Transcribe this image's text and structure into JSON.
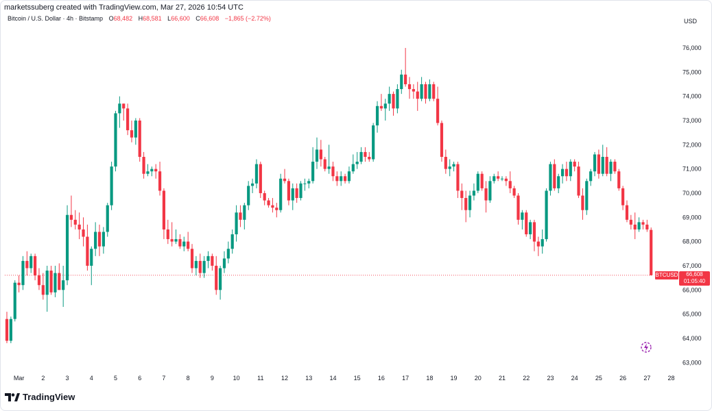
{
  "header": {
    "credit": "marketssuberg created with TradingView.com, Mar 27, 2026 10:54 UTC",
    "symbol_line": "Bitcoin / U.S. Dollar · 4h · Bitstamp",
    "open_label": "O",
    "open_value": "68,482",
    "high_label": "H",
    "high_value": "68,581",
    "low_label": "L",
    "low_value": "66,600",
    "close_label": "C",
    "close_value": "66,608",
    "change": "−1,865 (−2.72%)"
  },
  "axis": {
    "currency": "USD"
  },
  "price_label": {
    "ticker": "BTCUSD",
    "price": "66,608",
    "countdown": "01:05:40"
  },
  "brand": {
    "name": "TradingView"
  },
  "colors": {
    "up": "#089981",
    "down": "#f23645",
    "grid_text": "#131722",
    "price_line": "#f23645"
  },
  "icons": [
    "tradingview-logo-icon",
    "alert-icon"
  ],
  "chart_data": {
    "type": "candlestick",
    "title": "Bitcoin / U.S. Dollar · 4h · Bitstamp",
    "timeframe": "4h",
    "ylim": [
      62500,
      77000
    ],
    "y_ticks": [
      63000,
      64000,
      65000,
      66000,
      67000,
      68000,
      69000,
      70000,
      71000,
      72000,
      73000,
      74000,
      75000,
      76000
    ],
    "x_ticks": [
      {
        "label": "Mar",
        "index": 3
      },
      {
        "label": "2",
        "index": 9
      },
      {
        "label": "3",
        "index": 15
      },
      {
        "label": "4",
        "index": 21
      },
      {
        "label": "5",
        "index": 27
      },
      {
        "label": "6",
        "index": 33
      },
      {
        "label": "7",
        "index": 39
      },
      {
        "label": "8",
        "index": 45
      },
      {
        "label": "9",
        "index": 51
      },
      {
        "label": "10",
        "index": 57
      },
      {
        "label": "11",
        "index": 63
      },
      {
        "label": "12",
        "index": 69
      },
      {
        "label": "13",
        "index": 75
      },
      {
        "label": "14",
        "index": 81
      },
      {
        "label": "15",
        "index": 87
      },
      {
        "label": "16",
        "index": 93
      },
      {
        "label": "17",
        "index": 99
      },
      {
        "label": "18",
        "index": 105
      },
      {
        "label": "19",
        "index": 111
      },
      {
        "label": "20",
        "index": 117
      },
      {
        "label": "21",
        "index": 123
      },
      {
        "label": "22",
        "index": 129
      },
      {
        "label": "23",
        "index": 135
      },
      {
        "label": "24",
        "index": 141
      },
      {
        "label": "25",
        "index": 147
      },
      {
        "label": "26",
        "index": 153
      },
      {
        "label": "27",
        "index": 159
      },
      {
        "label": "28",
        "index": 165
      }
    ],
    "last_price": 66608,
    "ohlc": [
      [
        64800,
        65100,
        63800,
        63900
      ],
      [
        63900,
        64900,
        63800,
        64800
      ],
      [
        64800,
        66400,
        64700,
        66300
      ],
      [
        66300,
        66600,
        65900,
        66200
      ],
      [
        66200,
        67400,
        66000,
        67200
      ],
      [
        67200,
        67600,
        66600,
        66900
      ],
      [
        66900,
        67500,
        66700,
        67400
      ],
      [
        67400,
        67500,
        66400,
        66600
      ],
      [
        66600,
        66900,
        66000,
        66200
      ],
      [
        66200,
        66700,
        65600,
        65800
      ],
      [
        65800,
        67000,
        65100,
        66800
      ],
      [
        66800,
        67000,
        65800,
        65900
      ],
      [
        65900,
        67000,
        65700,
        66700
      ],
      [
        66700,
        67100,
        66000,
        66000
      ],
      [
        66000,
        67000,
        65300,
        66400
      ],
      [
        66400,
        69500,
        66200,
        69100
      ],
      [
        69100,
        69900,
        68600,
        68900
      ],
      [
        68900,
        69300,
        68500,
        68700
      ],
      [
        68700,
        69200,
        68100,
        68500
      ],
      [
        68500,
        69000,
        67800,
        68200
      ],
      [
        68200,
        68700,
        66800,
        67000
      ],
      [
        67000,
        67800,
        66200,
        67700
      ],
      [
        67700,
        68800,
        67400,
        68400
      ],
      [
        68400,
        68700,
        67400,
        67800
      ],
      [
        67800,
        68600,
        67500,
        68400
      ],
      [
        68400,
        69600,
        68200,
        69500
      ],
      [
        69500,
        71300,
        69300,
        71100
      ],
      [
        71100,
        73400,
        70900,
        73300
      ],
      [
        73300,
        74000,
        72700,
        73700
      ],
      [
        73700,
        73700,
        73000,
        73500
      ],
      [
        73500,
        73700,
        72400,
        72600
      ],
      [
        72600,
        73000,
        72100,
        72300
      ],
      [
        72300,
        73100,
        72000,
        73000
      ],
      [
        73000,
        73100,
        71300,
        71500
      ],
      [
        71500,
        71700,
        70600,
        70800
      ],
      [
        70800,
        71200,
        70700,
        70900
      ],
      [
        70900,
        71100,
        70700,
        71000
      ],
      [
        71000,
        71200,
        70600,
        70900
      ],
      [
        70900,
        71300,
        69900,
        70100
      ],
      [
        70100,
        70200,
        68100,
        68500
      ],
      [
        68500,
        68900,
        67900,
        68100
      ],
      [
        68100,
        68800,
        67800,
        68000
      ],
      [
        68000,
        68500,
        67900,
        68100
      ],
      [
        68100,
        68300,
        67700,
        67800
      ],
      [
        67800,
        68200,
        67600,
        68000
      ],
      [
        68000,
        68400,
        67600,
        67700
      ],
      [
        67700,
        67900,
        66700,
        66900
      ],
      [
        66900,
        67400,
        66600,
        67200
      ],
      [
        67200,
        67500,
        66500,
        66700
      ],
      [
        66700,
        67400,
        66500,
        67200
      ],
      [
        67200,
        67600,
        66900,
        67400
      ],
      [
        67400,
        67500,
        66800,
        67000
      ],
      [
        67000,
        67400,
        65800,
        66000
      ],
      [
        66000,
        67000,
        65600,
        66900
      ],
      [
        66900,
        67600,
        66700,
        67300
      ],
      [
        67300,
        68000,
        67100,
        67700
      ],
      [
        67700,
        68500,
        67500,
        68300
      ],
      [
        68300,
        69500,
        68000,
        69200
      ],
      [
        69200,
        69500,
        68600,
        68900
      ],
      [
        68900,
        69600,
        68500,
        69500
      ],
      [
        69500,
        70500,
        69300,
        70300
      ],
      [
        70300,
        70600,
        70000,
        70400
      ],
      [
        70400,
        71400,
        70200,
        71200
      ],
      [
        71200,
        71300,
        69800,
        70000
      ],
      [
        70000,
        70100,
        69500,
        69700
      ],
      [
        69700,
        69800,
        69400,
        69500
      ],
      [
        69500,
        69800,
        69200,
        69400
      ],
      [
        69400,
        69600,
        69000,
        69300
      ],
      [
        69300,
        70800,
        69200,
        70600
      ],
      [
        70600,
        71000,
        70400,
        70500
      ],
      [
        70500,
        70600,
        69500,
        69700
      ],
      [
        69700,
        70400,
        69300,
        70200
      ],
      [
        70200,
        70400,
        69600,
        69800
      ],
      [
        69800,
        70500,
        69700,
        70400
      ],
      [
        70400,
        70600,
        70100,
        70400
      ],
      [
        70400,
        70600,
        70200,
        70500
      ],
      [
        70500,
        71900,
        70400,
        71300
      ],
      [
        71300,
        72300,
        71000,
        71800
      ],
      [
        71800,
        72200,
        71100,
        71400
      ],
      [
        71400,
        71500,
        70900,
        71000
      ],
      [
        71000,
        72000,
        70800,
        71100
      ],
      [
        71100,
        71300,
        70500,
        70700
      ],
      [
        70700,
        70900,
        70300,
        70500
      ],
      [
        70500,
        70900,
        70300,
        70700
      ],
      [
        70700,
        70800,
        70400,
        70500
      ],
      [
        70500,
        71100,
        70400,
        70900
      ],
      [
        70900,
        71600,
        70800,
        71200
      ],
      [
        71200,
        71700,
        71000,
        71300
      ],
      [
        71300,
        71900,
        71200,
        71700
      ],
      [
        71700,
        71900,
        71300,
        71500
      ],
      [
        71500,
        71700,
        71300,
        71400
      ],
      [
        71400,
        72900,
        71300,
        72800
      ],
      [
        72800,
        73800,
        72500,
        73600
      ],
      [
        73600,
        74100,
        73400,
        73500
      ],
      [
        73500,
        73900,
        73000,
        73700
      ],
      [
        73700,
        74400,
        73400,
        74100
      ],
      [
        74100,
        74200,
        73200,
        73500
      ],
      [
        73500,
        74500,
        73300,
        74300
      ],
      [
        74300,
        75100,
        74100,
        74900
      ],
      [
        74900,
        76000,
        74400,
        74500
      ],
      [
        74500,
        74800,
        73900,
        74300
      ],
      [
        74300,
        74500,
        73900,
        74200
      ],
      [
        74200,
        74600,
        73400,
        73900
      ],
      [
        73900,
        74800,
        73800,
        74500
      ],
      [
        74500,
        74600,
        73700,
        73900
      ],
      [
        73900,
        74700,
        73800,
        74500
      ],
      [
        74500,
        74600,
        73800,
        73900
      ],
      [
        73900,
        74400,
        72800,
        72900
      ],
      [
        72900,
        73000,
        71300,
        71500
      ],
      [
        71500,
        71800,
        70800,
        71000
      ],
      [
        71000,
        71400,
        70700,
        71100
      ],
      [
        71100,
        71300,
        70900,
        71200
      ],
      [
        71200,
        71300,
        69800,
        70100
      ],
      [
        70100,
        70400,
        69300,
        69800
      ],
      [
        69800,
        70100,
        68800,
        69300
      ],
      [
        69300,
        70100,
        69000,
        69900
      ],
      [
        69900,
        70400,
        69700,
        70100
      ],
      [
        70100,
        70900,
        70000,
        70800
      ],
      [
        70800,
        70900,
        70100,
        70200
      ],
      [
        70200,
        70500,
        69200,
        69700
      ],
      [
        69700,
        70700,
        69600,
        70500
      ],
      [
        70500,
        70800,
        70400,
        70700
      ],
      [
        70700,
        70900,
        70500,
        70600
      ],
      [
        70600,
        70700,
        70500,
        70600
      ],
      [
        70600,
        70700,
        70300,
        70500
      ],
      [
        70500,
        70900,
        70000,
        70200
      ],
      [
        70200,
        70300,
        69800,
        69900
      ],
      [
        69900,
        70000,
        68700,
        68900
      ],
      [
        68900,
        69300,
        68500,
        69200
      ],
      [
        69200,
        69300,
        68200,
        68300
      ],
      [
        68300,
        68900,
        68100,
        68800
      ],
      [
        68800,
        68900,
        67600,
        68000
      ],
      [
        68000,
        68200,
        67400,
        67800
      ],
      [
        67800,
        68500,
        67500,
        68100
      ],
      [
        68100,
        70200,
        68000,
        70100
      ],
      [
        70100,
        71300,
        69900,
        71200
      ],
      [
        71200,
        71400,
        70100,
        70200
      ],
      [
        70200,
        70800,
        70000,
        70700
      ],
      [
        70700,
        71200,
        70400,
        71000
      ],
      [
        71000,
        71300,
        70500,
        70700
      ],
      [
        70700,
        71400,
        70500,
        71300
      ],
      [
        71300,
        71400,
        70900,
        71100
      ],
      [
        71100,
        71300,
        69800,
        69900
      ],
      [
        69900,
        70200,
        68900,
        69300
      ],
      [
        69300,
        70600,
        69100,
        70500
      ],
      [
        70500,
        71000,
        70300,
        70900
      ],
      [
        70900,
        71700,
        70700,
        71600
      ],
      [
        71600,
        71800,
        70600,
        70800
      ],
      [
        70800,
        72000,
        70700,
        71500
      ],
      [
        71500,
        71900,
        70700,
        70800
      ],
      [
        70800,
        71400,
        70500,
        71300
      ],
      [
        71300,
        71400,
        70800,
        70900
      ],
      [
        70900,
        71000,
        70100,
        70200
      ],
      [
        70200,
        70300,
        69300,
        69500
      ],
      [
        69500,
        69700,
        68800,
        68900
      ],
      [
        68900,
        69100,
        68500,
        68700
      ],
      [
        68700,
        69200,
        68100,
        68500
      ],
      [
        68500,
        69000,
        68400,
        68800
      ],
      [
        68800,
        68900,
        68500,
        68700
      ],
      [
        68700,
        68900,
        68400,
        68500
      ],
      [
        68482,
        68581,
        66600,
        66608
      ]
    ]
  }
}
